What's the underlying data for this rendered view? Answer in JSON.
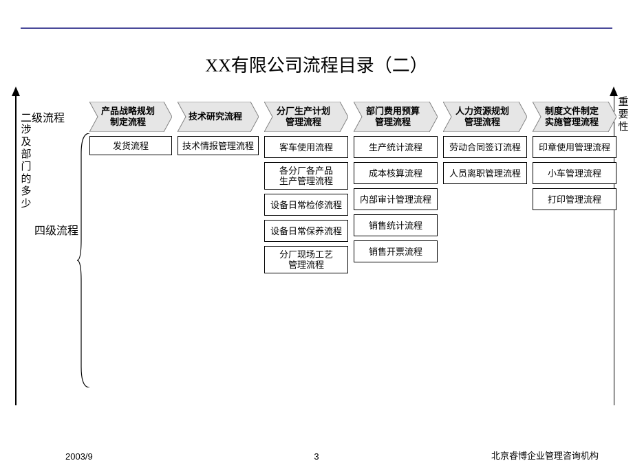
{
  "title": "XX有限公司流程目录（二）",
  "level2_label": "二级流程",
  "multidept_label": "涉及部门的多少",
  "level4_label": "四级流程",
  "importance_label": "重要性",
  "chevron_fill": "#e6e6e6",
  "chevron_stroke": "#808080",
  "rule_color": "#4a4a9a",
  "columns": [
    {
      "width": 120,
      "header": "产品战略规划\n制定流程",
      "items": [
        "发货流程"
      ]
    },
    {
      "width": 118,
      "header": "技术研究流程",
      "items": [
        "技术情报管理流程"
      ]
    },
    {
      "width": 122,
      "header": "分厂生产计划\n管理流程",
      "items": [
        "客车使用流程",
        "各分厂各产品\n生产管理流程",
        "设备日常检修流程",
        "设备日常保养流程",
        "分厂现场工艺\n管理流程"
      ]
    },
    {
      "width": 122,
      "header": "部门费用预算\n管理流程",
      "items": [
        "生产统计流程",
        "成本核算流程",
        "内部审计管理流程",
        "销售统计流程",
        "销售开票流程"
      ]
    },
    {
      "width": 122,
      "header": "人力资源规划\n管理流程",
      "items": [
        "劳动合同签订流程",
        "人员离职管理流程"
      ]
    },
    {
      "width": 122,
      "header": "制度文件制定\n实施管理流程",
      "items": [
        "印章使用管理流程",
        "小车管理流程",
        "打印管理流程"
      ]
    }
  ],
  "footer": {
    "date": "2003/9",
    "page": "3",
    "org": "北京睿博企业管理咨询机构"
  }
}
